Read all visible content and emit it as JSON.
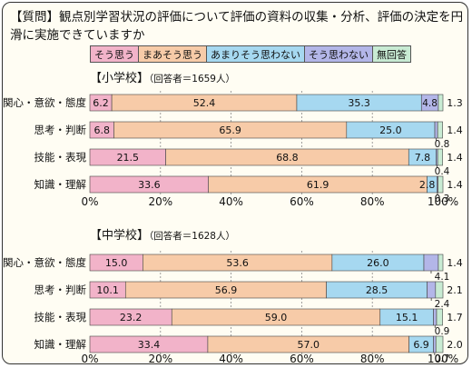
{
  "question": "【質問】観点別学習状況の評価について評価の資料の収集・分析、評価の決定を円滑に実施できていますか",
  "colors": {
    "s0": "#f2b3c9",
    "s1": "#f7cba8",
    "s2": "#a6d8f0",
    "s3": "#b3b6e8",
    "s4": "#c8ebd3"
  },
  "chart_data": [
    {
      "type": "bar",
      "orientation": "horizontal",
      "stacked": true,
      "title": "【小学校】",
      "respondents": "（回答者＝1659人）",
      "categories": [
        "関心・意欲・態度",
        "思考・判断",
        "技能・表現",
        "知識・理解"
      ],
      "series": [
        {
          "name": "そう思う",
          "values": [
            6.2,
            6.8,
            21.5,
            33.6
          ]
        },
        {
          "name": "まあそう思う",
          "values": [
            52.4,
            65.9,
            68.8,
            61.9
          ]
        },
        {
          "name": "あまりそう思わない",
          "values": [
            35.3,
            25.0,
            7.8,
            2.8
          ]
        },
        {
          "name": "そう思わない",
          "values": [
            4.8,
            0.8,
            0.4,
            0.3
          ]
        },
        {
          "name": "無回答",
          "values": [
            1.3,
            1.4,
            1.4,
            1.4
          ]
        }
      ],
      "xlim": [
        0,
        100
      ],
      "xticks": [
        "0%",
        "20%",
        "40%",
        "60%",
        "80%",
        "100%"
      ]
    },
    {
      "type": "bar",
      "orientation": "horizontal",
      "stacked": true,
      "title": "【中学校】",
      "respondents": "（回答者＝1628人）",
      "categories": [
        "関心・意欲・態度",
        "思考・判断",
        "技能・表現",
        "知識・理解"
      ],
      "series": [
        {
          "name": "そう思う",
          "values": [
            15.0,
            10.1,
            23.2,
            33.4
          ]
        },
        {
          "name": "まあそう思う",
          "values": [
            53.6,
            56.9,
            59.0,
            57.0
          ]
        },
        {
          "name": "あまりそう思わない",
          "values": [
            26.0,
            28.5,
            15.1,
            6.9
          ]
        },
        {
          "name": "そう思わない",
          "values": [
            4.1,
            2.4,
            0.9,
            0.7
          ]
        },
        {
          "name": "無回答",
          "values": [
            1.4,
            2.1,
            1.7,
            2.0
          ]
        }
      ],
      "xlim": [
        0,
        100
      ],
      "xticks": [
        "0%",
        "20%",
        "40%",
        "60%",
        "80%",
        "100%"
      ]
    }
  ]
}
